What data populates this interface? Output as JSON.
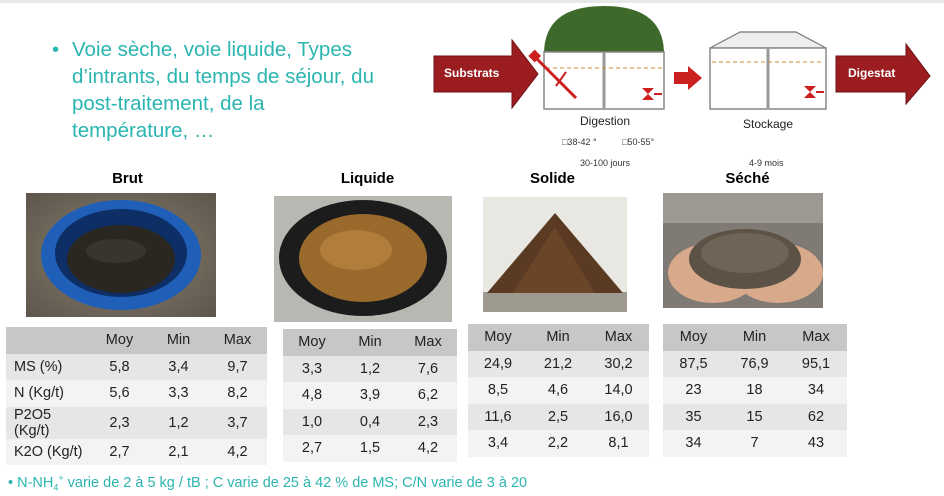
{
  "bullet": {
    "marker": "•",
    "lines": [
      "Voie sèche, voie liquide, Types",
      "d’intrants, du temps de séjour, du",
      "post-traitement, de la",
      "température, …"
    ]
  },
  "diagram": {
    "substrats_label": "Substrats",
    "digestion_label": "Digestion",
    "temp1": "□38-42 °",
    "temp2": "□50-55°",
    "digestion_time": "30-100 jours",
    "stockage_label": "Stockage",
    "stockage_time": "4-9 mois",
    "digestat_label": "Digestat",
    "colors": {
      "arrow": "#9b1d20",
      "dome": "#3d6a2a",
      "red": "#cc1f1f"
    }
  },
  "samples": [
    {
      "title": "Brut",
      "photo": "blue-bucket-image"
    },
    {
      "title": "Liquide",
      "photo": "liquid-bucket-image"
    },
    {
      "title": "Solide",
      "photo": "solid-pile-image"
    },
    {
      "title": "Séché",
      "photo": "dried-hands-image"
    }
  ],
  "tables": {
    "headers": [
      "Moy",
      "Min",
      "Max"
    ],
    "row_labels": [
      "MS (%)",
      "N (Kg/t)",
      "P2O5 (Kg/t)",
      "K2O (Kg/t)"
    ],
    "brut": [
      [
        "5,8",
        "3,4",
        "9,7"
      ],
      [
        "5,6",
        "3,3",
        "8,2"
      ],
      [
        "2,3",
        "1,2",
        "3,7"
      ],
      [
        "2,7",
        "2,1",
        "4,2"
      ]
    ],
    "liquide": [
      [
        "3,3",
        "1,2",
        "7,6"
      ],
      [
        "4,8",
        "3,9",
        "6,2"
      ],
      [
        "1,0",
        "0,4",
        "2,3"
      ],
      [
        "2,7",
        "1,5",
        "4,2"
      ]
    ],
    "solide": [
      [
        "24,9",
        "21,2",
        "30,2"
      ],
      [
        "8,5",
        "4,6",
        "14,0"
      ],
      [
        "11,6",
        "2,5",
        "16,0"
      ],
      [
        "3,4",
        "2,2",
        "8,1"
      ]
    ],
    "seche": [
      [
        "87,5",
        "76,9",
        "95,1"
      ],
      [
        "23",
        "18",
        "34"
      ],
      [
        "35",
        "15",
        "62"
      ],
      [
        "34",
        "7",
        "43"
      ]
    ]
  },
  "footnote": {
    "marker": "•",
    "p1": "N-NH",
    "sub": "4",
    "sup": "+",
    "p2": " varie de 2 à 5 kg / tB ; C varie de 25 à 42 % de MS; C/N varie de 3 à 20"
  }
}
